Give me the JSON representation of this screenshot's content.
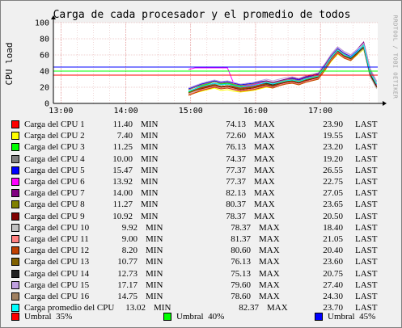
{
  "chart_data": {
    "type": "line",
    "title": "Carga de cada procesador y el promedio de todos",
    "ylabel": "CPU load",
    "watermark": "RRDTOOL / TOBI OETIKER",
    "ylim": [
      0,
      100
    ],
    "yticks": [
      0,
      20,
      40,
      60,
      80,
      100
    ],
    "xlim": [
      "12:53",
      "17:53"
    ],
    "xticks": [
      "13:00",
      "14:00",
      "15:00",
      "16:00",
      "17:00"
    ],
    "grid": true,
    "x": [
      "14:58",
      "15:04",
      "15:10",
      "15:16",
      "15:22",
      "15:28",
      "15:34",
      "15:40",
      "15:46",
      "15:52",
      "15:58",
      "16:04",
      "16:10",
      "16:16",
      "16:22",
      "16:28",
      "16:34",
      "16:40",
      "16:46",
      "16:52",
      "16:58",
      "17:04",
      "17:10",
      "17:16",
      "17:22",
      "17:28",
      "17:34",
      "17:40",
      "17:46",
      "17:52"
    ],
    "series": [
      {
        "name": "Carga del CPU 1",
        "color": "#ff0000",
        "min": "11.40",
        "max": "74.13",
        "last": "23.90",
        "values": [
          14,
          17,
          20,
          22,
          25,
          23,
          24,
          21,
          19,
          20,
          21,
          23,
          24,
          22,
          25,
          27,
          28,
          26,
          29,
          31,
          33,
          44,
          55,
          64,
          59,
          55,
          62,
          69,
          38,
          24
        ]
      },
      {
        "name": "Carga del CPU 2",
        "color": "#ffff00",
        "min": "7.40",
        "max": "72.60",
        "last": "19.55",
        "values": [
          10,
          13,
          15,
          17,
          19,
          16,
          17,
          15,
          14,
          15,
          16,
          18,
          20,
          19,
          22,
          24,
          25,
          23,
          26,
          28,
          30,
          40,
          52,
          61,
          56,
          53,
          60,
          67,
          34,
          20
        ]
      },
      {
        "name": "Carga del CPU 3",
        "color": "#00ff00",
        "min": "11.25",
        "max": "76.13",
        "last": "23.20",
        "values": [
          14,
          18,
          22,
          24,
          27,
          24,
          25,
          23,
          21,
          21,
          22,
          24,
          26,
          24,
          26,
          28,
          29,
          27,
          30,
          32,
          34,
          45,
          57,
          66,
          60,
          57,
          63,
          70,
          38,
          23
        ]
      },
      {
        "name": "Carga del CPU 4",
        "color": "#808080",
        "min": "10.00",
        "max": "74.37",
        "last": "19.20",
        "values": [
          12,
          16,
          19,
          21,
          24,
          21,
          22,
          20,
          18,
          19,
          20,
          22,
          23,
          21,
          24,
          26,
          27,
          25,
          28,
          30,
          32,
          42,
          54,
          63,
          57,
          54,
          61,
          68,
          33,
          19
        ]
      },
      {
        "name": "Carga del CPU 5",
        "color": "#0000ff",
        "min": "15.47",
        "max": "77.37",
        "last": "26.55",
        "values": [
          18,
          21,
          24,
          26,
          28,
          26,
          27,
          25,
          23,
          24,
          25,
          27,
          28,
          26,
          28,
          30,
          31,
          29,
          32,
          34,
          36,
          47,
          59,
          68,
          62,
          58,
          65,
          72,
          42,
          27
        ]
      },
      {
        "name": "Carga del CPU 6",
        "color": "#ff00ff",
        "min": "13.92",
        "max": "77.37",
        "last": "22.75",
        "values": [
          42,
          44,
          44,
          44,
          44,
          44,
          44,
          24,
          22,
          22,
          23,
          25,
          27,
          25,
          27,
          29,
          30,
          28,
          31,
          33,
          35,
          46,
          58,
          67,
          61,
          57,
          64,
          71,
          40,
          23
        ]
      },
      {
        "name": "Carga del CPU 7",
        "color": "#800080",
        "min": "14.00",
        "max": "82.13",
        "last": "27.05",
        "values": [
          17,
          20,
          23,
          25,
          27,
          25,
          26,
          24,
          22,
          23,
          24,
          26,
          28,
          26,
          28,
          30,
          32,
          30,
          33,
          35,
          37,
          48,
          61,
          70,
          64,
          60,
          67,
          76,
          43,
          27
        ]
      },
      {
        "name": "Carga del CPU 8",
        "color": "#808000",
        "min": "11.27",
        "max": "80.37",
        "last": "23.65",
        "values": [
          13,
          16,
          19,
          21,
          23,
          21,
          22,
          20,
          18,
          19,
          20,
          22,
          24,
          22,
          25,
          27,
          28,
          26,
          29,
          31,
          33,
          44,
          56,
          65,
          59,
          56,
          63,
          73,
          38,
          24
        ]
      },
      {
        "name": "Carga del CPU 9",
        "color": "#800000",
        "min": "10.92",
        "max": "78.37",
        "last": "20.50",
        "values": [
          13,
          16,
          18,
          20,
          22,
          20,
          21,
          19,
          17,
          18,
          19,
          21,
          23,
          21,
          24,
          26,
          27,
          25,
          28,
          30,
          32,
          43,
          55,
          64,
          58,
          55,
          62,
          70,
          35,
          21
        ]
      },
      {
        "name": "Carga del CPU 10",
        "color": "#c0c0c0",
        "min": "9.92",
        "max": "78.37",
        "last": "18.40",
        "values": [
          12,
          15,
          17,
          19,
          21,
          19,
          20,
          18,
          16,
          17,
          18,
          20,
          22,
          20,
          23,
          25,
          26,
          24,
          27,
          29,
          31,
          42,
          54,
          63,
          57,
          54,
          61,
          69,
          33,
          18
        ]
      },
      {
        "name": "Carga del CPU 11",
        "color": "#ff8080",
        "min": "9.00",
        "max": "81.37",
        "last": "21.05",
        "values": [
          11,
          14,
          17,
          19,
          21,
          19,
          20,
          18,
          16,
          17,
          18,
          20,
          22,
          20,
          23,
          25,
          26,
          24,
          27,
          29,
          31,
          42,
          54,
          63,
          57,
          54,
          62,
          72,
          36,
          21
        ]
      },
      {
        "name": "Carga del CPU 12",
        "color": "#c04000",
        "min": "8.20",
        "max": "80.60",
        "last": "20.40",
        "values": [
          10,
          13,
          16,
          18,
          20,
          18,
          19,
          17,
          15,
          16,
          17,
          19,
          21,
          19,
          22,
          24,
          25,
          23,
          26,
          28,
          30,
          41,
          53,
          62,
          56,
          53,
          61,
          71,
          35,
          20
        ]
      },
      {
        "name": "Carga del CPU 13",
        "color": "#806000",
        "min": "10.77",
        "max": "76.13",
        "last": "23.60",
        "values": [
          13,
          16,
          19,
          21,
          23,
          21,
          22,
          20,
          18,
          19,
          20,
          22,
          24,
          22,
          25,
          27,
          28,
          26,
          29,
          31,
          33,
          44,
          56,
          65,
          59,
          55,
          62,
          69,
          38,
          24
        ]
      },
      {
        "name": "Carga del CPU 14",
        "color": "#202020",
        "min": "12.73",
        "max": "75.13",
        "last": "20.75",
        "values": [
          15,
          18,
          21,
          23,
          25,
          23,
          24,
          22,
          20,
          21,
          22,
          24,
          25,
          23,
          26,
          28,
          29,
          27,
          30,
          32,
          34,
          45,
          57,
          66,
          60,
          56,
          63,
          70,
          36,
          21
        ]
      },
      {
        "name": "Carga del CPU 15",
        "color": "#c0a0e0",
        "min": "17.17",
        "max": "79.60",
        "last": "27.40",
        "values": [
          19,
          22,
          25,
          27,
          29,
          27,
          28,
          26,
          24,
          25,
          26,
          28,
          30,
          28,
          30,
          32,
          33,
          31,
          34,
          36,
          38,
          49,
          61,
          70,
          64,
          60,
          67,
          74,
          43,
          27
        ]
      },
      {
        "name": "Carga del CPU 16",
        "color": "#a08060",
        "min": "14.75",
        "max": "78.60",
        "last": "24.30",
        "values": [
          17,
          20,
          23,
          25,
          27,
          25,
          26,
          24,
          22,
          23,
          24,
          26,
          27,
          25,
          27,
          29,
          30,
          28,
          31,
          33,
          35,
          46,
          58,
          67,
          61,
          57,
          64,
          71,
          40,
          24
        ]
      },
      {
        "name": "Carga promedio del CPU",
        "color": "#00ffff",
        "min": "13.02",
        "max": "82.37",
        "last": "23.70",
        "values": [
          15,
          18,
          21,
          23,
          25,
          23,
          24,
          22,
          20,
          21,
          22,
          24,
          26,
          24,
          26,
          28,
          29,
          27,
          30,
          32,
          34,
          45,
          57,
          66,
          60,
          57,
          64,
          72,
          38,
          24
        ]
      }
    ],
    "thresholds": [
      {
        "name": "Umbral  35%",
        "value": 35,
        "color": "#ff0000"
      },
      {
        "name": "Umbral  40%",
        "value": 40,
        "color": "#00ff00"
      },
      {
        "name": "Umbral  45%",
        "value": 45,
        "color": "#0000ff"
      }
    ],
    "legend": {
      "min_label": "MIN",
      "max_label": "MAX",
      "last_label": "LAST"
    }
  }
}
